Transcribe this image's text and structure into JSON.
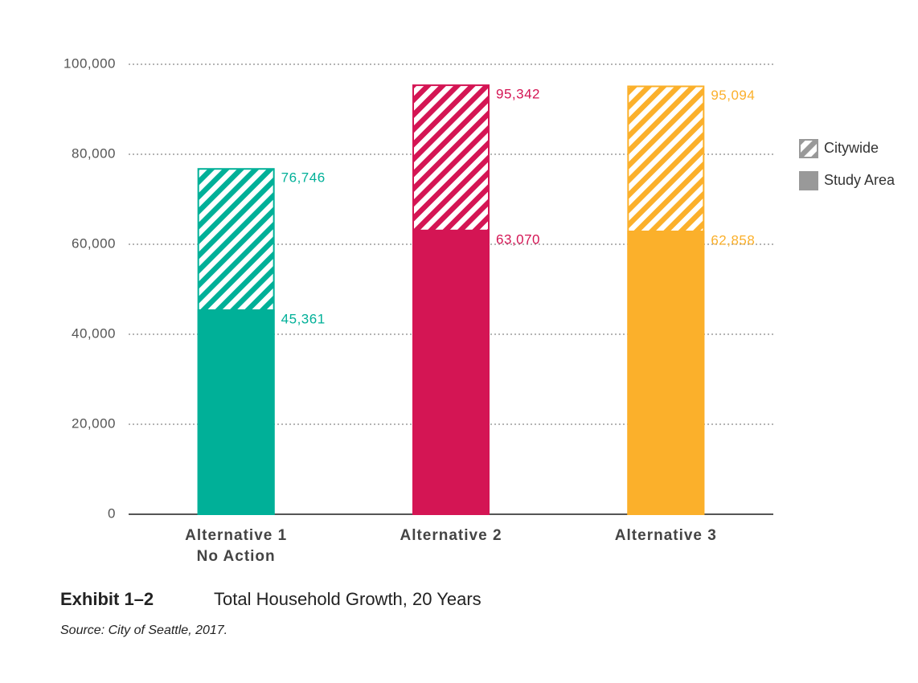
{
  "chart_data": {
    "type": "overlaid-bar",
    "exhibit": "Exhibit 1–2",
    "title": "Total Household Growth, 20 Years",
    "source": "Source: City of Seattle, 2017.",
    "categories": [
      "Alternative 1\nNo Action",
      "Alternative 2",
      "Alternative 3"
    ],
    "category_colors": [
      "#00b098",
      "#d41554",
      "#fbb02b"
    ],
    "series": [
      {
        "name": "Citywide",
        "color": "#999999",
        "pattern": "hatch",
        "values": [
          76746,
          95342,
          95094
        ],
        "value_labels": [
          "76,746",
          "95,342",
          "95,094"
        ]
      },
      {
        "name": "Study Area",
        "color": "#999999",
        "pattern": "solid",
        "values": [
          45361,
          63070,
          62858
        ],
        "value_labels": [
          "45,361",
          "63,070",
          "62,858"
        ]
      }
    ],
    "ylim": [
      0,
      100000
    ],
    "yticks": [
      0,
      {
        "value": 20000,
        "label": "20,000"
      },
      {
        "value": 40000,
        "label": "40,000"
      },
      {
        "value": 60000,
        "label": "60,000"
      },
      {
        "value": 80000,
        "label": "80,000"
      },
      {
        "value": 100000,
        "label": "100,000"
      }
    ],
    "grid": true,
    "legend": "right"
  }
}
